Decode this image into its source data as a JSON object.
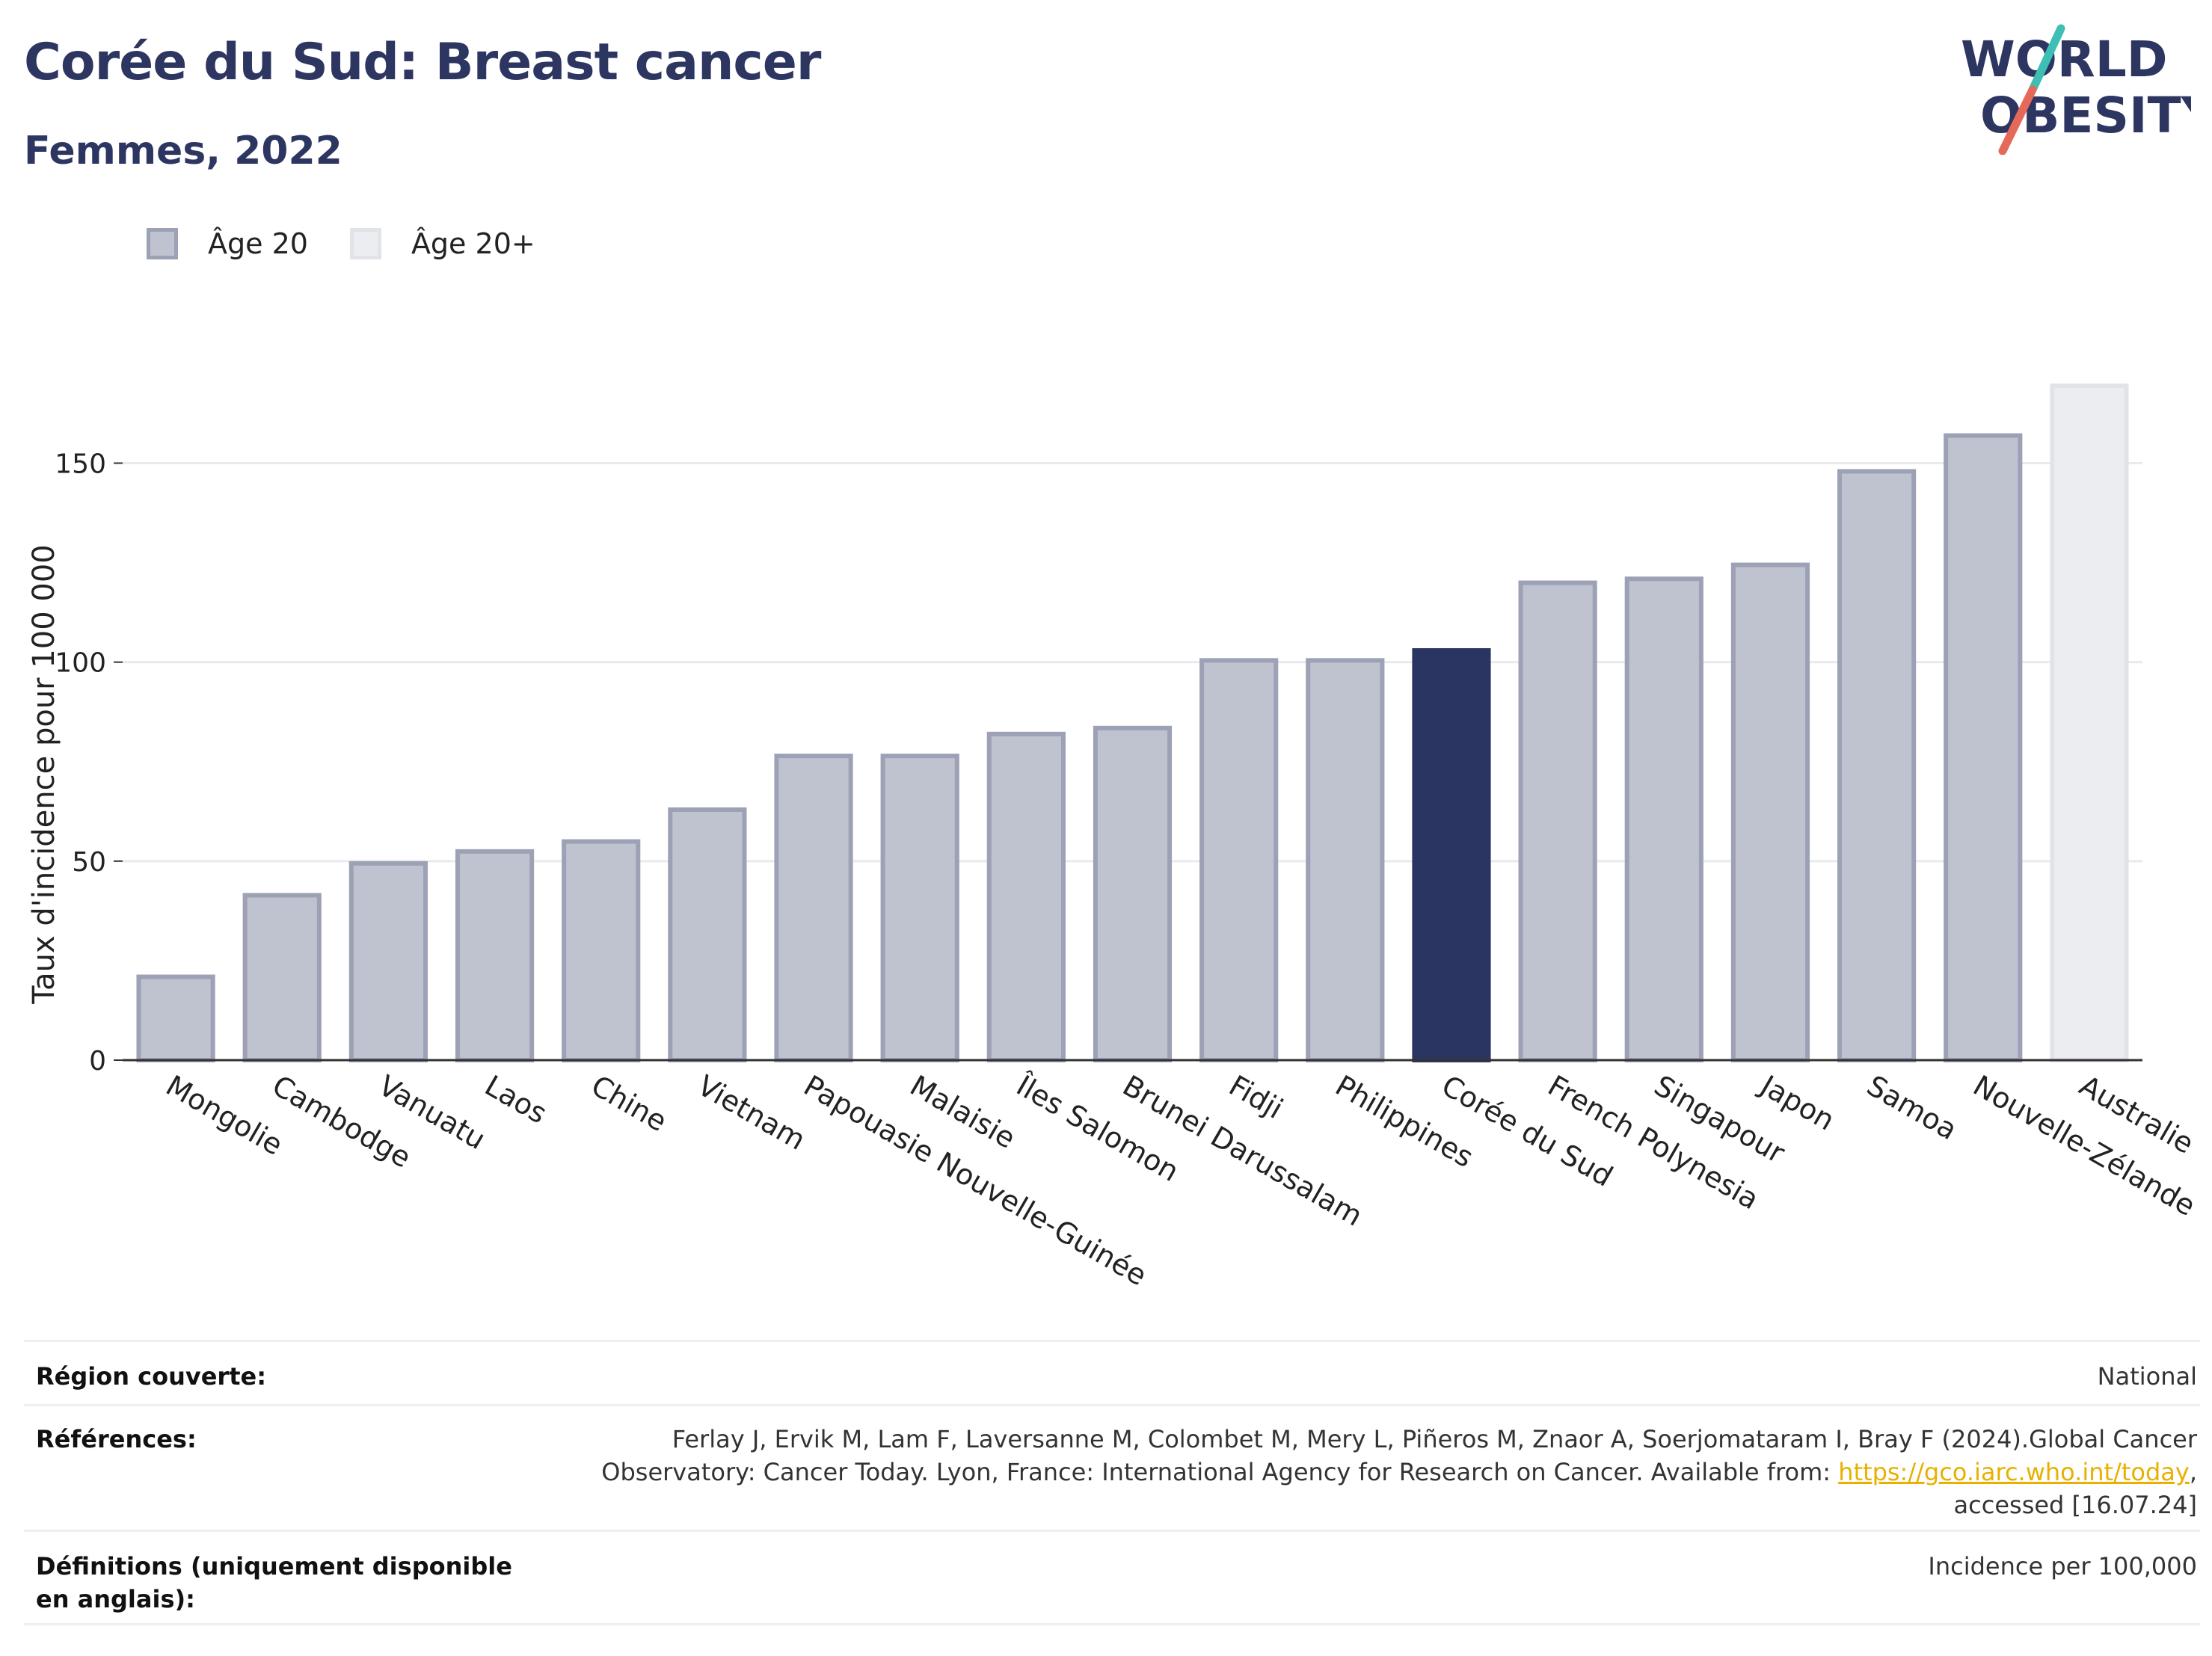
{
  "header": {
    "title": "Corée du Sud: Breast cancer",
    "subtitle": "Femmes, 2022"
  },
  "logo": {
    "line1": "WORLD",
    "line2": "OBESITY"
  },
  "legend": [
    {
      "label": "Âge 20",
      "color": "#bfc2cf"
    },
    {
      "label": "Âge 20+",
      "color": "#ecedf1"
    }
  ],
  "chart_data": {
    "type": "bar",
    "title": "",
    "ylabel": "Taux d'incidence pour 100 000",
    "xlabel": "",
    "ylim": [
      0,
      170
    ],
    "yticks": [
      0,
      50,
      100,
      150
    ],
    "grid": true,
    "legend_position": "top-left",
    "categories": [
      "Mongolie",
      "Cambodge",
      "Vanuatu",
      "Laos",
      "Chine",
      "Vietnam",
      "Papouasie Nouvelle-Guinée",
      "Malaisie",
      "Îles Salomon",
      "Brunei Darussalam",
      "Fidji",
      "Philippines",
      "Corée du Sud",
      "French Polynesia",
      "Singapour",
      "Japon",
      "Samoa",
      "Nouvelle-Zélande",
      "Australie"
    ],
    "values": [
      21.5,
      42,
      50,
      53,
      55.5,
      63.5,
      77,
      77,
      82.5,
      84,
      101,
      101,
      103.5,
      120.5,
      121.5,
      125,
      148.5,
      157.5,
      170
    ],
    "series_group": [
      "Âge 20",
      "Âge 20",
      "Âge 20",
      "Âge 20",
      "Âge 20",
      "Âge 20",
      "Âge 20",
      "Âge 20",
      "Âge 20",
      "Âge 20",
      "Âge 20",
      "Âge 20",
      "Âge 20",
      "Âge 20",
      "Âge 20",
      "Âge 20",
      "Âge 20",
      "Âge 20",
      "Âge 20+"
    ],
    "highlight": "Corée du Sud",
    "colors": {
      "age20_fill": "#bfc2cf",
      "age20_stroke": "#9da1b6",
      "age20plus_fill": "#ecedf1",
      "age20plus_stroke": "#e2e3e9",
      "highlight": "#2b3561",
      "grid": "#e9eaee",
      "axis": "#333333"
    }
  },
  "footer": {
    "region_label": "Région couverte:",
    "region_value": "National",
    "references_label": "Références:",
    "references_line1": "Ferlay J, Ervik M, Lam F, Laversanne M, Colombet M, Mery L, Piñeros M, Znaor A, Soerjomataram I, Bray F (2024).Global Cancer",
    "references_line2": "Observatory: Cancer Today. Lyon, France: International Agency for Research on Cancer. Available from: ",
    "references_link": "https://gco.iarc.who.int/today",
    "references_line2_end": ",",
    "references_line3": "accessed [16.07.24]",
    "definitions_label": "Définitions (uniquement disponible en anglais):",
    "definitions_value": "Incidence per 100,000"
  }
}
